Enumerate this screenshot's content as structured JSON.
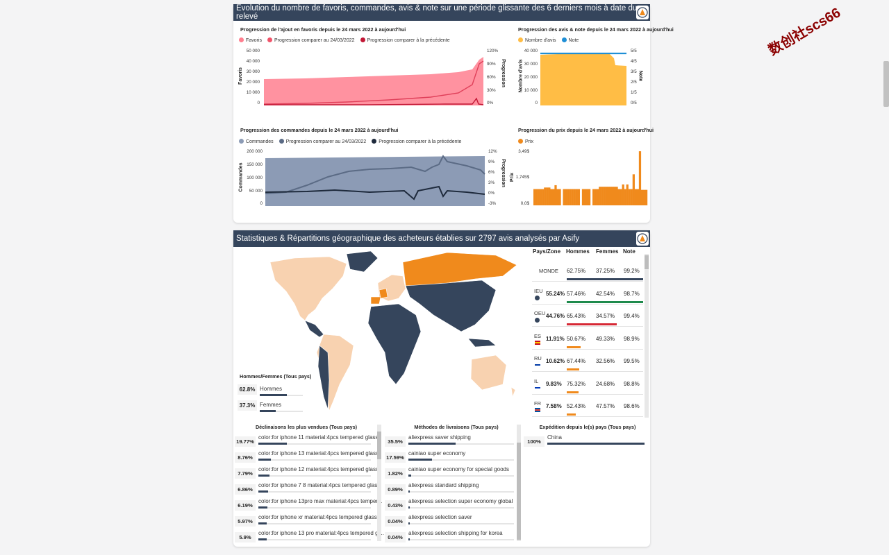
{
  "panel1": {
    "title": "Évolution du nombre de favoris, commandes, avis & note sur une période glissante des 6 derniers mois à date du relevé"
  },
  "fav_chart": {
    "title": "Progression de l'ajout en favoris depuis le 24 mars 2022 à aujourd'hui",
    "legend": [
      "Favoris",
      "Progression comparer au 24/03/2022",
      "Progression comparer à la précédente"
    ],
    "colors": [
      "#ff7f8f",
      "#f0546a",
      "#c21836"
    ],
    "y_ticks": [
      "50 000",
      "40 000",
      "30 000",
      "20 000",
      "10 000",
      "0"
    ],
    "y2_ticks": [
      "120%",
      "90%",
      "60%",
      "30%",
      "0%"
    ],
    "ylabel": "Favoris",
    "y2label": "Progression"
  },
  "avis_chart": {
    "title": "Progression des avis & note depuis le 24 mars 2022 à aujourd'hui",
    "legend": [
      "Nombre d'avis",
      "Note"
    ],
    "colors": [
      "#ffbd45",
      "#1f8fd6"
    ],
    "y_ticks": [
      "40 000",
      "30 000",
      "20 000",
      "10 000",
      "0"
    ],
    "y2_ticks": [
      "5/5",
      "4/5",
      "3/5",
      "2/5",
      "1/5",
      "0/5"
    ],
    "ylabel": "Nombre d'avis",
    "y2label": "Note"
  },
  "cmd_chart": {
    "title": "Progression des commandes depuis le 24 mars 2022 à aujourd'hui",
    "legend": [
      "Commandes",
      "Progression comparer au 24/03/2022",
      "Progression comparer à la précédente"
    ],
    "colors": [
      "#8c9bb5",
      "#5b6b85",
      "#1e2a3c"
    ],
    "y_ticks": [
      "200 000",
      "150 000",
      "100 000",
      "50 000",
      "0"
    ],
    "y2_ticks": [
      "12%",
      "9%",
      "6%",
      "3%",
      "0%",
      "-3%"
    ],
    "ylabel": "Commandes",
    "y2label": "Progression"
  },
  "prix_chart": {
    "title": "Progression du prix depuis le 24 mars 2022 à aujourd'hui",
    "legend": [
      "Prix"
    ],
    "colors": [
      "#f08a1c"
    ],
    "y_ticks": [
      "3,49$",
      "1,745$",
      "0,0$"
    ],
    "ylabel": "Prix"
  },
  "panel2": {
    "title": "Statistiques & Répartitions géographique des acheteurs établies sur 2797 avis analysés par Asify"
  },
  "gender": {
    "title": "Hommes/Femmes (Tous pays)",
    "rows": [
      {
        "pct": "62.8%",
        "label": "Hommes",
        "value": 62.8
      },
      {
        "pct": "37.3%",
        "label": "Femmes",
        "value": 37.3
      }
    ]
  },
  "country_table": {
    "headers": [
      "Pays/Zone",
      "Hommes",
      "Femmes",
      "Note"
    ],
    "rows": [
      {
        "code": "MONDE",
        "pct": "",
        "men": "62.75%",
        "women": "37.25%",
        "note": "99.2%",
        "bar": 100,
        "bar_color": "#35455c"
      },
      {
        "code": "IEU",
        "pct": "55.24%",
        "men": "57.46%",
        "women": "42.54%",
        "note": "98.7%",
        "bar": 100,
        "bar_color": "#1e8a4c"
      },
      {
        "code": "OEU",
        "pct": "44.76%",
        "men": "65.43%",
        "women": "34.57%",
        "note": "99.4%",
        "bar": 65,
        "bar_color": "#d62835"
      },
      {
        "code": "ES",
        "pct": "11.91%",
        "men": "50.67%",
        "women": "49.33%",
        "note": "98.9%",
        "bar": 18,
        "bar_color": "#f08a1c"
      },
      {
        "code": "RU",
        "pct": "10.62%",
        "men": "67.44%",
        "women": "32.56%",
        "note": "99.5%",
        "bar": 16,
        "bar_color": "#f08a1c"
      },
      {
        "code": "IL",
        "pct": "9.83%",
        "men": "75.32%",
        "women": "24.68%",
        "note": "98.8%",
        "bar": 15,
        "bar_color": "#f08a1c"
      },
      {
        "code": "FR",
        "pct": "7.58%",
        "men": "52.43%",
        "women": "47.57%",
        "note": "98.6%",
        "bar": 12,
        "bar_color": "#f08a1c"
      }
    ]
  },
  "variants": {
    "title": "Déclinaisons les plus vendues (Tous pays)",
    "items": [
      {
        "pct": "19.77%",
        "label": "color:for iphone 11 material:4pcs tempered glass",
        "value": 19.77
      },
      {
        "pct": "8.76%",
        "label": "color:for iphone 13 material:4pcs tempered glass",
        "value": 8.76
      },
      {
        "pct": "7.79%",
        "label": "color:for iphone 12 material:4pcs tempered glass",
        "value": 7.79
      },
      {
        "pct": "6.86%",
        "label": "color:for iphone 7 8 material:4pcs tempered glass",
        "value": 6.86
      },
      {
        "pct": "6.19%",
        "label": "color:for iphone 13pro max material:4pcs temper...",
        "value": 6.19
      },
      {
        "pct": "5.97%",
        "label": "color:for iphone xr material:4pcs tempered glass",
        "value": 5.97
      },
      {
        "pct": "5.9%",
        "label": "color:for iphone 13 pro material:4pcs tempered gl...",
        "value": 5.9
      }
    ]
  },
  "shipping": {
    "title": "Méthodes de livraisons (Tous pays)",
    "items": [
      {
        "pct": "35.5%",
        "label": "aliexpress saver shipping",
        "value": 35.5
      },
      {
        "pct": "17.59%",
        "label": "cainiao super economy",
        "value": 17.59
      },
      {
        "pct": "1.82%",
        "label": "cainiao super economy for special goods",
        "value": 1.82
      },
      {
        "pct": "0.89%",
        "label": "aliexpress standard shipping",
        "value": 0.89
      },
      {
        "pct": "0.43%",
        "label": "aliexpress selection super economy global",
        "value": 0.43
      },
      {
        "pct": "0.04%",
        "label": "aliexpress selection saver",
        "value": 0.04
      },
      {
        "pct": "0.04%",
        "label": "aliexpress selection shipping for korea",
        "value": 0.04
      }
    ]
  },
  "origin": {
    "title": "Expédition depuis le(s) pays (Tous pays)",
    "items": [
      {
        "pct": "100%",
        "label": "China",
        "value": 100
      }
    ]
  },
  "watermark": "数创社scs66"
}
